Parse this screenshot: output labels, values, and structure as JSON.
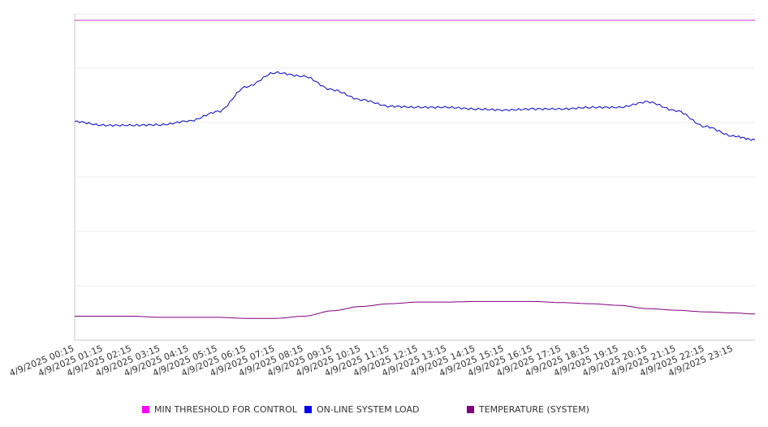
{
  "chart_data": {
    "type": "line",
    "title": "",
    "xlabel": "",
    "ylabel": "",
    "grid": true,
    "legend_position": "bottom",
    "y_tick_labels_shown": false,
    "x_tick_labels": [
      "4/9/2025 00:15",
      "4/9/2025 01:15",
      "4/9/2025 02:15",
      "4/9/2025 03:15",
      "4/9/2025 04:15",
      "4/9/2025 05:15",
      "4/9/2025 06:15",
      "4/9/2025 07:15",
      "4/9/2025 08:15",
      "4/9/2025 09:15",
      "4/9/2025 10:15",
      "4/9/2025 11:15",
      "4/9/2025 12:15",
      "4/9/2025 13:15",
      "4/9/2025 14:15",
      "4/9/2025 15:15",
      "4/9/2025 16:15",
      "4/9/2025 17:15",
      "4/9/2025 18:15",
      "4/9/2025 19:15",
      "4/9/2025 20:15",
      "4/9/2025 21:15",
      "4/9/2025 22:15",
      "4/9/2025 23:15"
    ],
    "x_range": [
      "4/9/2025 00:15",
      "4/9/2025 24:00"
    ],
    "ylim": [
      0,
      6
    ],
    "series": [
      {
        "name": "MIN THRESHOLD FOR CONTROL",
        "color": "#cc33cc",
        "x": [
          "4/9/2025 00:15",
          "4/9/2025 24:00"
        ],
        "y": [
          5.88,
          5.88
        ]
      },
      {
        "name": "ON-LINE SYSTEM LOAD",
        "color": "#0000cc",
        "x": [
          "4/9/2025 00:15",
          "4/9/2025 01:15",
          "4/9/2025 02:15",
          "4/9/2025 03:15",
          "4/9/2025 04:15",
          "4/9/2025 05:15",
          "4/9/2025 06:15",
          "4/9/2025 07:15",
          "4/9/2025 08:15",
          "4/9/2025 09:15",
          "4/9/2025 10:15",
          "4/9/2025 11:15",
          "4/9/2025 12:15",
          "4/9/2025 13:15",
          "4/9/2025 14:15",
          "4/9/2025 15:15",
          "4/9/2025 16:15",
          "4/9/2025 17:15",
          "4/9/2025 18:15",
          "4/9/2025 19:15",
          "4/9/2025 20:15",
          "4/9/2025 21:15",
          "4/9/2025 22:15",
          "4/9/2025 23:15",
          "4/9/2025 24:00"
        ],
        "y": [
          4.02,
          3.95,
          3.95,
          3.96,
          4.03,
          4.2,
          4.66,
          4.92,
          4.85,
          4.6,
          4.42,
          4.3,
          4.28,
          4.28,
          4.25,
          4.23,
          4.25,
          4.25,
          4.28,
          4.28,
          4.38,
          4.22,
          3.93,
          3.75,
          3.68
        ]
      },
      {
        "name": "TEMPERATURE (SYSTEM)",
        "color": "#800080",
        "x": [
          "4/9/2025 00:15",
          "4/9/2025 01:15",
          "4/9/2025 02:15",
          "4/9/2025 03:15",
          "4/9/2025 04:15",
          "4/9/2025 05:15",
          "4/9/2025 06:15",
          "4/9/2025 07:15",
          "4/9/2025 08:15",
          "4/9/2025 09:15",
          "4/9/2025 10:15",
          "4/9/2025 11:15",
          "4/9/2025 12:15",
          "4/9/2025 13:15",
          "4/9/2025 14:15",
          "4/9/2025 15:15",
          "4/9/2025 16:15",
          "4/9/2025 17:15",
          "4/9/2025 18:15",
          "4/9/2025 19:15",
          "4/9/2025 20:15",
          "4/9/2025 21:15",
          "4/9/2025 22:15",
          "4/9/2025 23:15",
          "4/9/2025 24:00"
        ],
        "y": [
          0.44,
          0.44,
          0.44,
          0.42,
          0.42,
          0.42,
          0.4,
          0.4,
          0.44,
          0.54,
          0.62,
          0.67,
          0.7,
          0.7,
          0.71,
          0.71,
          0.71,
          0.69,
          0.67,
          0.64,
          0.58,
          0.55,
          0.52,
          0.5,
          0.48
        ]
      }
    ]
  }
}
